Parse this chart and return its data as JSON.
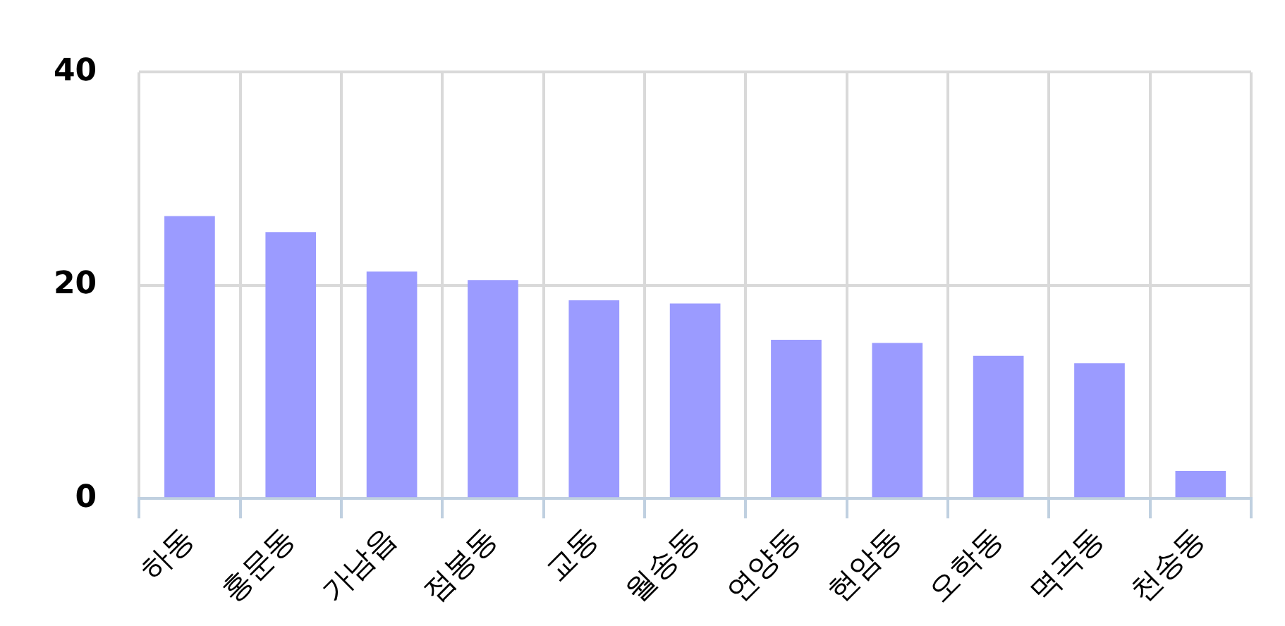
{
  "chart_data": {
    "type": "bar",
    "categories": [
      "하동",
      "홍문동",
      "가남읍",
      "점봉동",
      "교동",
      "월송동",
      "연양동",
      "현암동",
      "오학동",
      "멱곡동",
      "천송동"
    ],
    "values": [
      26.5,
      25.0,
      21.3,
      20.5,
      18.6,
      18.3,
      14.9,
      14.6,
      13.4,
      12.7,
      2.6
    ],
    "color": "#9b9bff",
    "ylim": [
      0,
      40
    ],
    "yticks": [
      0,
      20,
      40
    ],
    "grid": true
  }
}
